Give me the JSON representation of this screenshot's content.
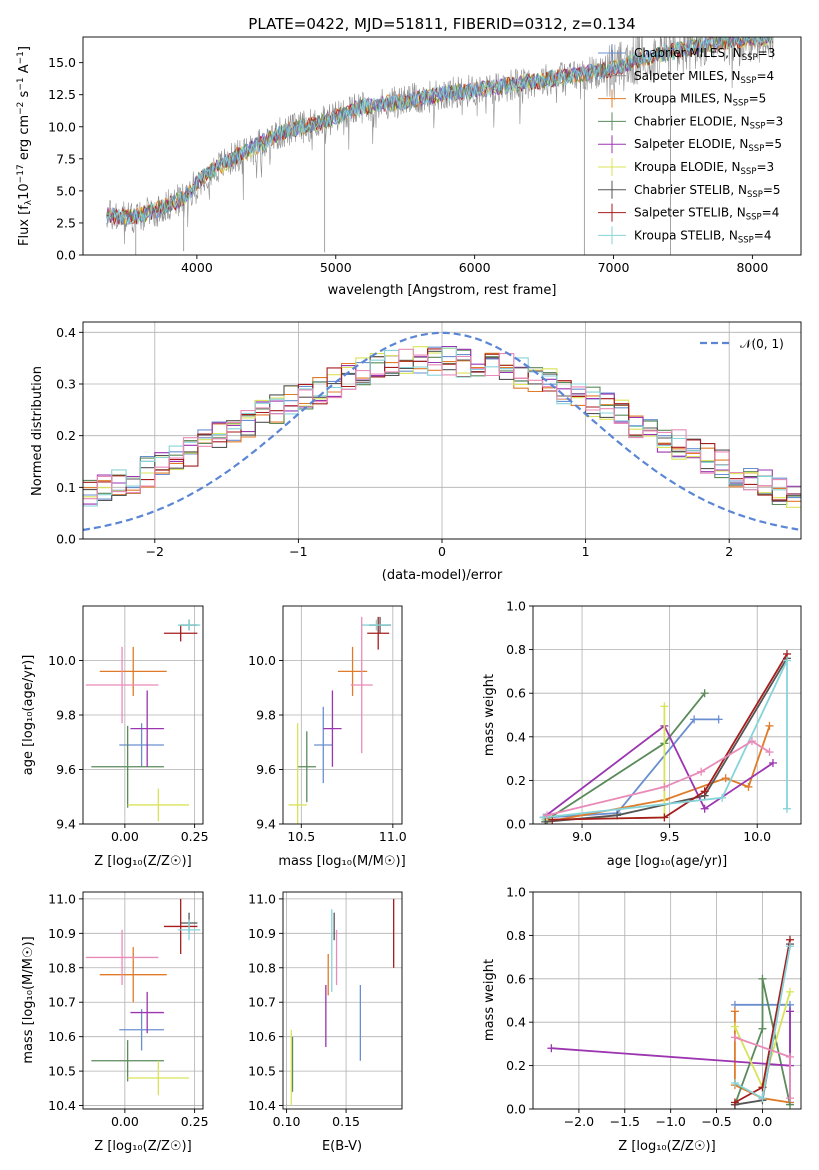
{
  "palette": {
    "Chabrier MILES": "#6a8fd0",
    "Salpeter MILES": "#8e8e8e",
    "Kroupa MILES": "#e07b2a",
    "Chabrier ELODIE": "#5b8a5b",
    "Salpeter ELODIE": "#9b35b0",
    "Kroupa ELODIE": "#d9e35a",
    "Chabrier STELIB": "#555555",
    "Salpeter STELIB": "#a51d1d",
    "Kroupa STELIB": "#86d4d8",
    "pink": "#e98bb8",
    "gauss": "#5b86d6",
    "grid": "#b0b0b0"
  },
  "chart_data": [
    {
      "id": "spectrum",
      "type": "line",
      "title": "PLATE=0422, MJD=51811, FIBERID=0312, z=0.134",
      "xlabel": "wavelength [Angstrom, rest frame]",
      "ylabel_main": "Flux [f",
      "ylabel_sub": "λ",
      "ylabel_rest": "10",
      "ylabel_sup1": "−17",
      "ylabel_rest2": " erg cm",
      "ylabel_sup2": "−2",
      "ylabel_rest3": " s",
      "ylabel_sup3": "−1",
      "ylabel_rest4": " A",
      "ylabel_sup4": "−1",
      "ylabel_end": "]",
      "xlim": [
        3180,
        8350
      ],
      "ylim": [
        0,
        17
      ],
      "xticks": [
        4000,
        5000,
        6000,
        7000,
        8000
      ],
      "yticks": [
        0.0,
        2.5,
        5.0,
        7.5,
        10.0,
        12.5,
        15.0
      ],
      "yticklabels": [
        "0.0",
        "2.5",
        "5.0",
        "7.5",
        "10.0",
        "12.5",
        "15.0"
      ],
      "continuum": [
        [
          3350,
          3.1
        ],
        [
          3550,
          2.9
        ],
        [
          3750,
          3.7
        ],
        [
          3900,
          4.4
        ],
        [
          4050,
          6.2
        ],
        [
          4300,
          7.8
        ],
        [
          4600,
          9.5
        ],
        [
          4900,
          10.4
        ],
        [
          5200,
          11.6
        ],
        [
          5500,
          12.0
        ],
        [
          5800,
          12.6
        ],
        [
          6100,
          13.0
        ],
        [
          6400,
          13.5
        ],
        [
          6700,
          14.0
        ],
        [
          7000,
          14.5
        ],
        [
          7200,
          15.3
        ],
        [
          7400,
          15.8
        ],
        [
          7600,
          16.3
        ],
        [
          7750,
          16.6
        ],
        [
          8150,
          17.0
        ]
      ],
      "legend": [
        {
          "name": "Chabrier MILES",
          "label": "Chabrier MILES, N",
          "sub": "SSP",
          "val": "=3"
        },
        {
          "name": "Salpeter MILES",
          "label": "Salpeter MILES, N",
          "sub": "SSP",
          "val": "=4"
        },
        {
          "name": "Kroupa MILES",
          "label": "Kroupa MILES, N",
          "sub": "SSP",
          "val": "=5"
        },
        {
          "name": "Chabrier ELODIE",
          "label": "Chabrier ELODIE, N",
          "sub": "SSP",
          "val": "=3"
        },
        {
          "name": "Salpeter ELODIE",
          "label": "Salpeter ELODIE, N",
          "sub": "SSP",
          "val": "=5"
        },
        {
          "name": "Kroupa ELODIE",
          "label": "Kroupa ELODIE, N",
          "sub": "SSP",
          "val": "=3"
        },
        {
          "name": "Chabrier STELIB",
          "label": "Chabrier STELIB, N",
          "sub": "SSP",
          "val": "=5"
        },
        {
          "name": "Salpeter STELIB",
          "label": "Salpeter STELIB, N",
          "sub": "SSP",
          "val": "=4"
        },
        {
          "name": "Kroupa STELIB",
          "label": "Kroupa STELIB, N",
          "sub": "SSP",
          "val": "=4"
        }
      ]
    },
    {
      "id": "residuals",
      "type": "line",
      "xlabel": "(data-model)/error",
      "ylabel": "Normed distribution",
      "xlim": [
        -2.5,
        2.5
      ],
      "ylim": [
        0,
        0.42
      ],
      "xticks": [
        -2,
        -1,
        0,
        1,
        2
      ],
      "xticklabels": [
        "−2",
        "−1",
        "0",
        "1",
        "2"
      ],
      "yticks": [
        0.0,
        0.1,
        0.2,
        0.3,
        0.4
      ],
      "yticklabels": [
        "0.0",
        "0.1",
        "0.2",
        "0.3",
        "0.4"
      ],
      "bin_width": 0.1,
      "grid": true,
      "gauss_label": "𝒩(0, 1)",
      "legend_position": "top-right"
    },
    {
      "id": "age-vs-Z",
      "type": "scatter",
      "xlabel": "Z [log₁₀(Z/Z☉)]",
      "ylabel": "age  [log₁₀(age/yr)]",
      "xlim": [
        -0.15,
        0.28
      ],
      "ylim": [
        9.4,
        10.2
      ],
      "xticks": [
        0.0,
        0.25
      ],
      "xticklabels": [
        "0.00",
        "0.25"
      ],
      "yticks": [
        9.4,
        9.6,
        9.8,
        10.0
      ],
      "yticklabels": [
        "9.4",
        "9.6",
        "9.8",
        "10.0"
      ],
      "grid": true,
      "points": [
        {
          "series": "Chabrier MILES",
          "x": 0.06,
          "y": 9.69,
          "xerr": 0.08,
          "yerr": 0.08
        },
        {
          "series": "Kroupa MILES",
          "x": 0.03,
          "y": 9.96,
          "xerr": 0.12,
          "yerr": 0.09
        },
        {
          "series": "Chabrier ELODIE",
          "x": 0.01,
          "y": 9.61,
          "xerr": 0.13,
          "yerr": 0.15
        },
        {
          "series": "Salpeter ELODIE",
          "x": 0.08,
          "y": 9.75,
          "xerr": 0.06,
          "yerr": 0.14
        },
        {
          "series": "Kroupa ELODIE",
          "x": 0.12,
          "y": 9.47,
          "xerr": 0.11,
          "yerr": 0.06
        },
        {
          "series": "Chabrier STELIB",
          "x": 0.23,
          "y": 10.13,
          "xerr": 0.03,
          "yerr": 0.02
        },
        {
          "series": "Salpeter STELIB",
          "x": 0.2,
          "y": 10.1,
          "xerr": 0.06,
          "yerr": 0.03
        },
        {
          "series": "Kroupa STELIB",
          "x": 0.23,
          "y": 10.13,
          "xerr": 0.04,
          "yerr": 0.02
        },
        {
          "series": "pink",
          "x": -0.01,
          "y": 9.91,
          "xerr": 0.13,
          "yerr": 0.14
        }
      ]
    },
    {
      "id": "age-vs-mass",
      "type": "scatter",
      "xlabel": "mass [log₁₀(M/M☉)]",
      "xlim": [
        10.4,
        11.05
      ],
      "ylim": [
        9.4,
        10.2
      ],
      "xticks": [
        10.5,
        11.0
      ],
      "xticklabels": [
        "10.5",
        "11.0"
      ],
      "yticks": [
        9.4,
        9.6,
        9.8,
        10.0
      ],
      "yticklabels": [
        "9.4",
        "9.6",
        "9.8",
        "10.0"
      ],
      "grid": true,
      "points": [
        {
          "series": "Chabrier MILES",
          "x": 10.62,
          "y": 9.69,
          "xerr": 0.05,
          "yerr": 0.14
        },
        {
          "series": "Kroupa MILES",
          "x": 10.78,
          "y": 9.96,
          "xerr": 0.08,
          "yerr": 0.09
        },
        {
          "series": "Chabrier ELODIE",
          "x": 10.53,
          "y": 9.61,
          "xerr": 0.05,
          "yerr": 0.13
        },
        {
          "series": "Salpeter ELODIE",
          "x": 10.67,
          "y": 9.75,
          "xerr": 0.05,
          "yerr": 0.14
        },
        {
          "series": "Kroupa ELODIE",
          "x": 10.48,
          "y": 9.47,
          "xerr": 0.05,
          "yerr": 0.3
        },
        {
          "series": "Chabrier STELIB",
          "x": 10.93,
          "y": 10.13,
          "xerr": 0.06,
          "yerr": 0.03
        },
        {
          "series": "Salpeter STELIB",
          "x": 10.92,
          "y": 10.1,
          "xerr": 0.06,
          "yerr": 0.06
        },
        {
          "series": "Kroupa STELIB",
          "x": 10.91,
          "y": 10.13,
          "xerr": 0.08,
          "yerr": 0.02
        },
        {
          "series": "pink",
          "x": 10.83,
          "y": 9.91,
          "xerr": 0.06,
          "yerr": 0.25
        }
      ]
    },
    {
      "id": "mass-weight-vs-age",
      "type": "line",
      "xlabel": "age  [log₁₀(age/yr)]",
      "ylabel": "mass weight",
      "xlim": [
        8.72,
        10.25
      ],
      "ylim": [
        0,
        1
      ],
      "xticks": [
        9.0,
        9.5,
        10.0
      ],
      "xticklabels": [
        "9.0",
        "9.5",
        "10.0"
      ],
      "yticks": [
        0.0,
        0.2,
        0.4,
        0.6,
        0.8,
        1.0
      ],
      "yticklabels": [
        "0.0",
        "0.2",
        "0.4",
        "0.6",
        "0.8",
        "1.0"
      ],
      "grid": true,
      "series": [
        {
          "name": "Chabrier MILES",
          "x": [
            8.79,
            9.2,
            9.64,
            9.78
          ],
          "y": [
            0.03,
            0.05,
            0.48,
            0.48
          ]
        },
        {
          "name": "Kroupa MILES",
          "x": [
            8.8,
            9.47,
            9.82,
            9.95,
            10.07
          ],
          "y": [
            0.01,
            0.11,
            0.21,
            0.17,
            0.45
          ]
        },
        {
          "name": "Chabrier ELODIE",
          "x": [
            8.8,
            9.47,
            9.7
          ],
          "y": [
            0.02,
            0.37,
            0.6
          ]
        },
        {
          "name": "Salpeter ELODIE",
          "x": [
            8.78,
            9.47,
            9.7,
            10.09
          ],
          "y": [
            0.03,
            0.45,
            0.07,
            0.28
          ]
        },
        {
          "name": "Kroupa ELODIE",
          "x": [
            8.79,
            9.47,
            9.47
          ],
          "y": [
            0.02,
            0.03,
            0.54
          ]
        },
        {
          "name": "Chabrier STELIB",
          "x": [
            8.79,
            9.2,
            9.7,
            10.17
          ],
          "y": [
            0.01,
            0.04,
            0.13,
            0.76
          ]
        },
        {
          "name": "Salpeter STELIB",
          "x": [
            8.83,
            9.47,
            9.7,
            10.17
          ],
          "y": [
            0.02,
            0.03,
            0.15,
            0.78
          ]
        },
        {
          "name": "Kroupa STELIB",
          "x": [
            8.78,
            9.8,
            10.17,
            10.17
          ],
          "y": [
            0.03,
            0.12,
            0.75,
            0.07
          ]
        },
        {
          "name": "pink",
          "x": [
            8.8,
            9.47,
            9.68,
            9.97,
            10.07
          ],
          "y": [
            0.04,
            0.17,
            0.24,
            0.38,
            0.33
          ]
        }
      ]
    },
    {
      "id": "mass-vs-Z",
      "type": "scatter",
      "xlabel": "Z [log₁₀(Z/Z☉)]",
      "ylabel": "mass [log₁₀(M/M☉)]",
      "xlim": [
        -0.15,
        0.28
      ],
      "ylim": [
        10.39,
        11.02
      ],
      "xticks": [
        0.0,
        0.25
      ],
      "xticklabels": [
        "0.00",
        "0.25"
      ],
      "yticks": [
        10.4,
        10.5,
        10.6,
        10.7,
        10.8,
        10.9,
        11.0
      ],
      "yticklabels": [
        "10.4",
        "10.5",
        "10.6",
        "10.7",
        "10.8",
        "10.9",
        "11.0"
      ],
      "grid": true,
      "points": [
        {
          "series": "Chabrier MILES",
          "x": 0.06,
          "y": 10.62,
          "xerr": 0.08,
          "yerr": 0.06
        },
        {
          "series": "Kroupa MILES",
          "x": 0.03,
          "y": 10.78,
          "xerr": 0.12,
          "yerr": 0.08
        },
        {
          "series": "Chabrier ELODIE",
          "x": 0.01,
          "y": 10.53,
          "xerr": 0.13,
          "yerr": 0.06
        },
        {
          "series": "Salpeter ELODIE",
          "x": 0.08,
          "y": 10.67,
          "xerr": 0.06,
          "yerr": 0.06
        },
        {
          "series": "Kroupa ELODIE",
          "x": 0.12,
          "y": 10.48,
          "xerr": 0.11,
          "yerr": 0.05
        },
        {
          "series": "Chabrier STELIB",
          "x": 0.23,
          "y": 10.93,
          "xerr": 0.03,
          "yerr": 0.03
        },
        {
          "series": "Salpeter STELIB",
          "x": 0.2,
          "y": 10.92,
          "xerr": 0.06,
          "yerr": 0.08
        },
        {
          "series": "Kroupa STELIB",
          "x": 0.23,
          "y": 10.91,
          "xerr": 0.04,
          "yerr": 0.03
        },
        {
          "series": "pink",
          "x": -0.01,
          "y": 10.83,
          "xerr": 0.13,
          "yerr": 0.08
        }
      ]
    },
    {
      "id": "mass-vs-EBV",
      "type": "scatter",
      "xlabel": "E(B-V)",
      "xlim": [
        0.097,
        0.197
      ],
      "ylim": [
        10.39,
        11.02
      ],
      "xticks": [
        0.1,
        0.15
      ],
      "xticklabels": [
        "0.10",
        "0.15"
      ],
      "yticks": [
        10.4,
        10.5,
        10.6,
        10.7,
        10.8,
        10.9,
        11.0
      ],
      "yticklabels": [
        "10.4",
        "10.5",
        "10.6",
        "10.7",
        "10.8",
        "10.9",
        "11.0"
      ],
      "grid": true,
      "points": [
        {
          "series": "Chabrier MILES",
          "x": 0.162,
          "y": 10.64,
          "yerr": 0.11
        },
        {
          "series": "Kroupa MILES",
          "x": 0.135,
          "y": 10.78,
          "yerr": 0.06
        },
        {
          "series": "Chabrier ELODIE",
          "x": 0.105,
          "y": 10.52,
          "yerr": 0.08
        },
        {
          "series": "Salpeter ELODIE",
          "x": 0.133,
          "y": 10.66,
          "yerr": 0.09
        },
        {
          "series": "Kroupa ELODIE",
          "x": 0.104,
          "y": 10.51,
          "yerr": 0.11
        },
        {
          "series": "Chabrier STELIB",
          "x": 0.14,
          "y": 10.92,
          "yerr": 0.04
        },
        {
          "series": "Salpeter STELIB",
          "x": 0.19,
          "y": 10.9,
          "yerr": 0.1
        },
        {
          "series": "Kroupa STELIB",
          "x": 0.138,
          "y": 10.85,
          "yerr": 0.12
        },
        {
          "series": "pink",
          "x": 0.142,
          "y": 10.83,
          "yerr": 0.08
        }
      ]
    },
    {
      "id": "mass-weight-vs-Z",
      "type": "line",
      "xlabel": "Z [log₁₀(Z/Z☉)]",
      "ylabel": "mass weight",
      "xlim": [
        -2.5,
        0.42
      ],
      "ylim": [
        0,
        1
      ],
      "xticks": [
        -2.0,
        -1.5,
        -1.0,
        -0.5,
        0.0
      ],
      "xticklabels": [
        "−2.0",
        "−1.5",
        "−1.0",
        "−0.5",
        "0.0"
      ],
      "yticks": [
        0.0,
        0.2,
        0.4,
        0.6,
        0.8,
        1.0
      ],
      "yticklabels": [
        "0.0",
        "0.2",
        "0.4",
        "0.6",
        "0.8",
        "1.0"
      ],
      "grid": true,
      "series": [
        {
          "name": "Chabrier MILES",
          "x": [
            -0.3,
            0.3,
            0.3
          ],
          "y": [
            0.48,
            0.48,
            0.03
          ]
        },
        {
          "name": "Kroupa MILES",
          "x": [
            -0.3,
            -0.3,
            0.0,
            0.3
          ],
          "y": [
            0.45,
            0.11,
            0.05,
            0.03
          ]
        },
        {
          "name": "Chabrier ELODIE",
          "x": [
            -0.3,
            0.0,
            0.0,
            0.3
          ],
          "y": [
            0.02,
            0.37,
            0.6,
            0.02
          ]
        },
        {
          "name": "Salpeter ELODIE",
          "x": [
            -2.3,
            0.3,
            0.3
          ],
          "y": [
            0.28,
            0.2,
            0.45
          ]
        },
        {
          "name": "Kroupa ELODIE",
          "x": [
            -0.3,
            0.0,
            0.3
          ],
          "y": [
            0.38,
            0.1,
            0.54
          ]
        },
        {
          "name": "Chabrier STELIB",
          "x": [
            -0.3,
            0.0,
            0.3
          ],
          "y": [
            0.02,
            0.04,
            0.76
          ]
        },
        {
          "name": "Salpeter STELIB",
          "x": [
            -0.3,
            0.0,
            0.3
          ],
          "y": [
            0.03,
            0.1,
            0.78
          ]
        },
        {
          "name": "Kroupa STELIB",
          "x": [
            -0.3,
            0.0,
            0.3
          ],
          "y": [
            0.12,
            0.05,
            0.75
          ]
        },
        {
          "name": "pink",
          "x": [
            -0.3,
            0.3,
            0.3
          ],
          "y": [
            0.33,
            0.24,
            0.05
          ]
        }
      ]
    }
  ]
}
